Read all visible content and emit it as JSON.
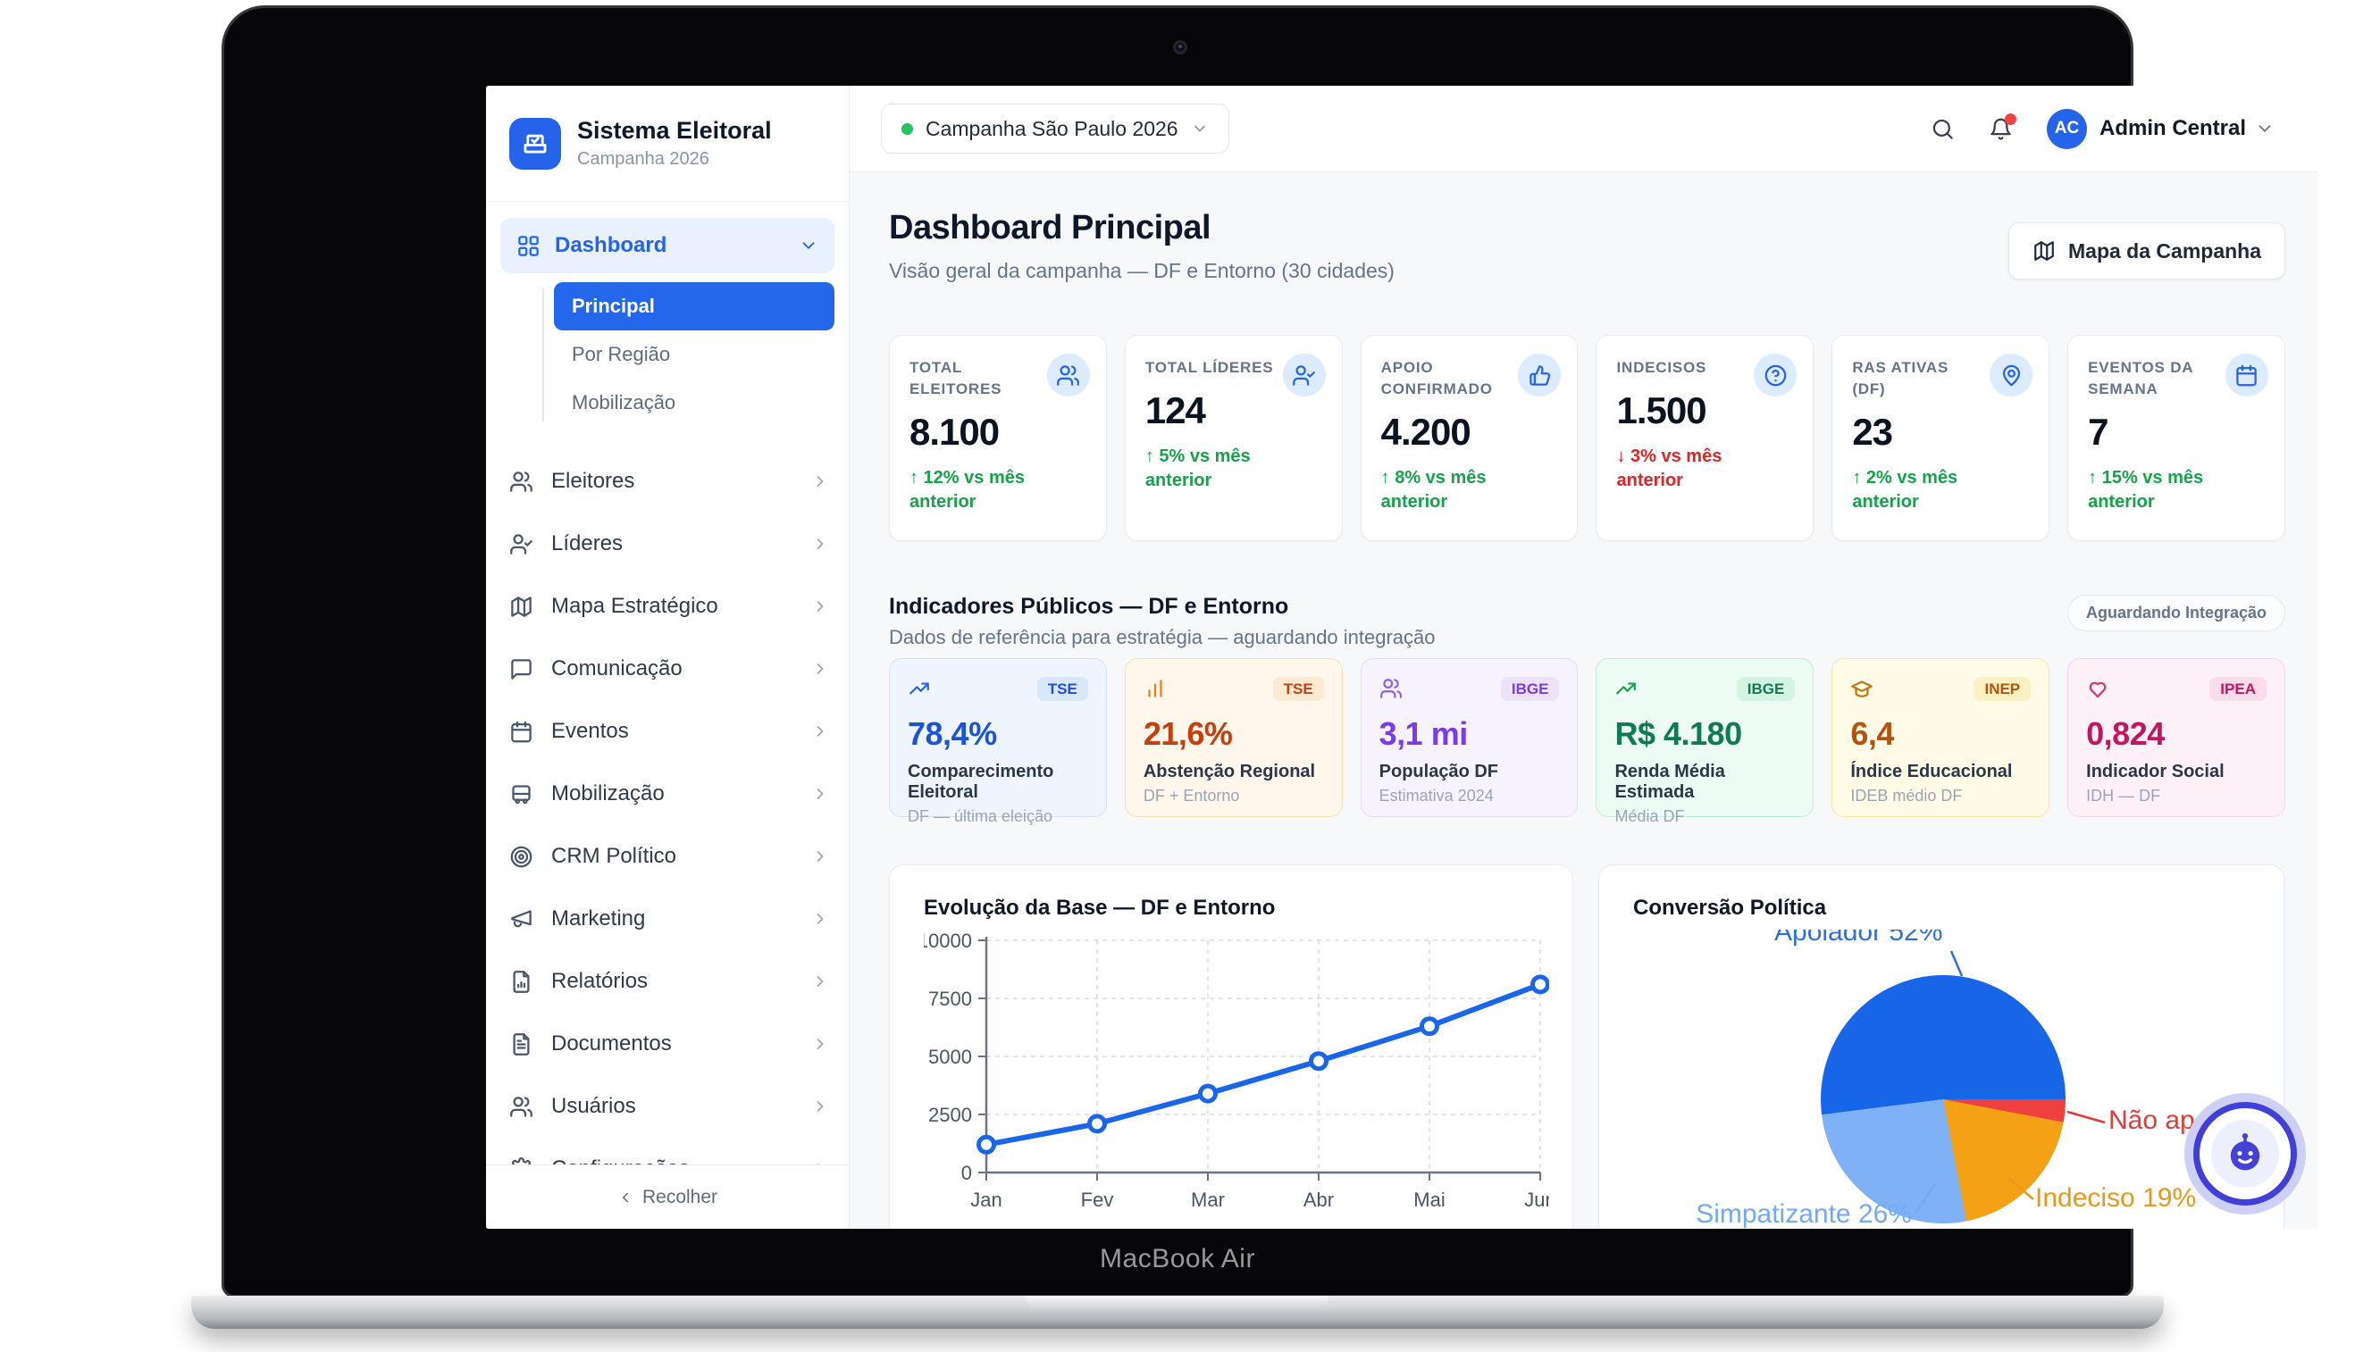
{
  "device": {
    "label": "MacBook Air"
  },
  "brand": {
    "title": "Sistema Eleitoral",
    "subtitle": "Campanha 2026"
  },
  "topbar": {
    "campaign": "Campanha São Paulo 2026",
    "user": {
      "initials": "AC",
      "name": "Admin Central"
    }
  },
  "sidebar": {
    "dashboard": {
      "label": "Dashboard",
      "children": [
        "Principal",
        "Por Região",
        "Mobilização"
      ],
      "active_child": "Principal"
    },
    "items": [
      {
        "key": "eleitores",
        "label": "Eleitores",
        "icon": "users"
      },
      {
        "key": "lideres",
        "label": "Líderes",
        "icon": "user-check"
      },
      {
        "key": "mapa-estrategico",
        "label": "Mapa Estratégico",
        "icon": "map"
      },
      {
        "key": "comunicacao",
        "label": "Comunicação",
        "icon": "message-square"
      },
      {
        "key": "eventos",
        "label": "Eventos",
        "icon": "calendar"
      },
      {
        "key": "mobilizacao",
        "label": "Mobilização",
        "icon": "bus"
      },
      {
        "key": "crm-politico",
        "label": "CRM Político",
        "icon": "target"
      },
      {
        "key": "marketing",
        "label": "Marketing",
        "icon": "megaphone"
      },
      {
        "key": "relatorios",
        "label": "Relatórios",
        "icon": "file-bar-chart"
      },
      {
        "key": "documentos",
        "label": "Documentos",
        "icon": "file-text"
      },
      {
        "key": "usuarios",
        "label": "Usuários",
        "icon": "users"
      },
      {
        "key": "configuracoes",
        "label": "Configurações",
        "icon": "settings"
      }
    ],
    "collapse_label": "Recolher"
  },
  "page": {
    "title": "Dashboard Principal",
    "subtitle": "Visão geral da campanha — DF e Entorno (30 cidades)",
    "map_button": "Mapa da Campanha"
  },
  "kpis": [
    {
      "key": "total-eleitores",
      "label": "TOTAL ELEITORES",
      "value": "8.100",
      "delta": "↑ 12% vs mês anterior",
      "trend": "up",
      "icon": "users"
    },
    {
      "key": "total-lideres",
      "label": "TOTAL LÍDERES",
      "value": "124",
      "delta": "↑ 5% vs mês anterior",
      "trend": "up",
      "icon": "user-check"
    },
    {
      "key": "apoio-confirmado",
      "label": "APOIO CONFIRMADO",
      "value": "4.200",
      "delta": "↑ 8% vs mês anterior",
      "trend": "up",
      "icon": "thumbs-up"
    },
    {
      "key": "indecisos",
      "label": "INDECISOS",
      "value": "1.500",
      "delta": "↓ 3% vs mês anterior",
      "trend": "down",
      "icon": "help-circle"
    },
    {
      "key": "ras-ativas",
      "label": "RAS ATIVAS (DF)",
      "value": "23",
      "delta": "↑ 2% vs mês anterior",
      "trend": "up",
      "icon": "map-pin"
    },
    {
      "key": "eventos-semana",
      "label": "EVENTOS DA SEMANA",
      "value": "7",
      "delta": "↑ 15% vs mês anterior",
      "trend": "up",
      "icon": "calendar"
    }
  ],
  "indicators_section": {
    "title": "Indicadores Públicos — DF e Entorno",
    "subtitle": "Dados de referência para estratégia — aguardando integração",
    "badge": "Aguardando Integração",
    "cards": [
      {
        "key": "comparecimento",
        "value": "78,4%",
        "name": "Comparecimento Eleitoral",
        "detail": "DF — última eleição",
        "source": "TSE",
        "theme": "blue",
        "icon": "trending-up"
      },
      {
        "key": "abstencao",
        "value": "21,6%",
        "name": "Abstenção Regional",
        "detail": "DF + Entorno",
        "source": "TSE",
        "theme": "orange",
        "icon": "bar-chart"
      },
      {
        "key": "populacao",
        "value": "3,1 mi",
        "name": "População DF",
        "detail": "Estimativa 2024",
        "source": "IBGE",
        "theme": "purple",
        "icon": "users"
      },
      {
        "key": "renda",
        "value": "R$ 4.180",
        "name": "Renda Média Estimada",
        "detail": "Média DF",
        "source": "IBGE",
        "theme": "green",
        "icon": "trending-up"
      },
      {
        "key": "educacao",
        "value": "6,4",
        "name": "Índice Educacional",
        "detail": "IDEB médio DF",
        "source": "INEP",
        "theme": "amber",
        "icon": "graduation-cap"
      },
      {
        "key": "social",
        "value": "0,824",
        "name": "Indicador Social",
        "detail": "IDH — DF",
        "source": "IPEA",
        "theme": "pink",
        "icon": "heart"
      }
    ]
  },
  "chart_data": [
    {
      "type": "line",
      "title": "Evolução da Base — DF e Entorno",
      "x": [
        "Jan",
        "Fev",
        "Mar",
        "Abr",
        "Mai",
        "Jun"
      ],
      "values": [
        1200,
        2100,
        3400,
        4800,
        6300,
        8100
      ],
      "ylim": [
        0,
        10000
      ],
      "yticks": [
        0,
        2500,
        5000,
        7500,
        10000
      ],
      "grid": true,
      "legend": false,
      "line_color": "#1a66e8"
    },
    {
      "type": "pie",
      "title": "Conversão Política",
      "slices": [
        {
          "label": "Apoiador",
          "pct": 52,
          "color": "#1766e8",
          "label_color": "#2f6fe2",
          "show_pct": true
        },
        {
          "label": "Não apoiador",
          "pct": 3,
          "color": "#ef4040",
          "label_color": "#e23b3b",
          "show_pct": false
        },
        {
          "label": "Indeciso",
          "pct": 19,
          "color": "#f5a115",
          "label_color": "#e8991b",
          "show_pct": true
        },
        {
          "label": "Simpatizante",
          "pct": 26,
          "color": "#7fb1f7",
          "label_color": "#74a9f6",
          "show_pct": true
        }
      ]
    }
  ],
  "colors": {
    "accent": "#2563eb",
    "positive": "#15a349",
    "negative": "#dc2626",
    "online_dot": "#22c55e"
  }
}
